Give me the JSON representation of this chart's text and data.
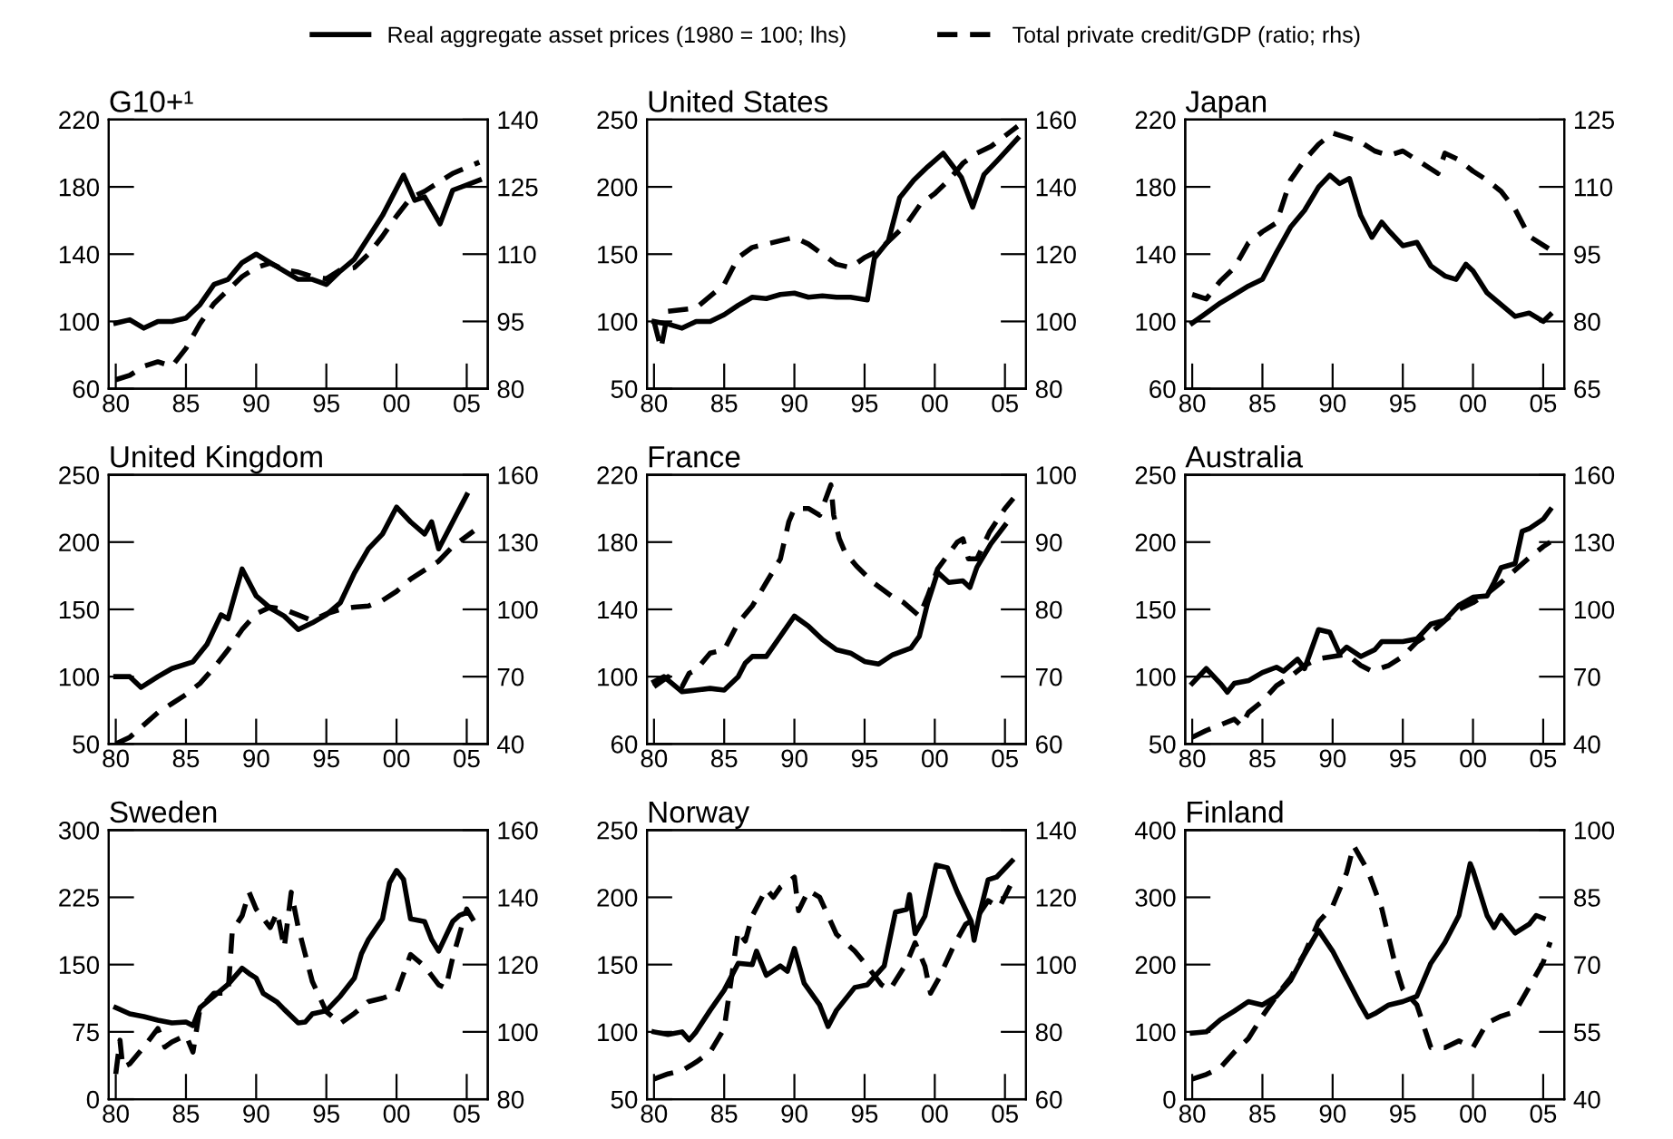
{
  "chart_data": [
    {
      "type": "line",
      "title": "G10+¹",
      "legend": "top",
      "xlim": [
        1979.5,
        2006.5
      ],
      "xticks": [
        {
          "value": 1980,
          "label": "80"
        },
        {
          "value": 1985,
          "label": "85"
        },
        {
          "value": 1990,
          "label": "90"
        },
        {
          "value": 1995,
          "label": "95"
        },
        {
          "value": 2000,
          "label": "00"
        },
        {
          "value": 2005,
          "label": "05"
        }
      ],
      "ylim": [
        60,
        220
      ],
      "yticks": [
        60,
        100,
        140,
        180,
        220
      ],
      "y2lim": [
        80,
        140
      ],
      "y2ticks": [
        80,
        95,
        110,
        125,
        140
      ],
      "series": [
        {
          "name": "Real aggregate asset prices (1980 = 100; lhs)",
          "color": "#000000",
          "line_style": "solid",
          "x": [
            1980,
            1981,
            1982,
            1983,
            1984,
            1985,
            1986,
            1987,
            1988,
            1989,
            1990,
            1991,
            1992,
            1993,
            1994,
            1995,
            1996,
            1997,
            1998,
            1999,
            2000.5,
            2001.3,
            2002,
            2003.1,
            2004,
            2005.9
          ],
          "values": [
            99,
            101,
            96,
            100,
            100,
            102,
            110,
            122,
            125,
            135,
            140,
            135,
            130,
            125,
            125,
            122,
            130,
            137,
            150,
            163,
            187,
            172,
            174,
            158,
            178,
            184
          ]
        },
        {
          "name": "Total private credit/GDP (ratio; rhs)",
          "color": "#000000",
          "line_style": "dashed",
          "axis": "y2",
          "x": [
            1980,
            1981,
            1982,
            1983,
            1984,
            1985,
            1986,
            1987,
            1988,
            1989,
            1990,
            1991,
            1992,
            1993,
            1994,
            1995,
            1996,
            1997,
            1998,
            1999,
            2000,
            2001,
            2002,
            2003,
            2004,
            2005.9
          ],
          "values": [
            82,
            83,
            85,
            86,
            85,
            89,
            94.5,
            99,
            102,
            105,
            107,
            108,
            106.5,
            106,
            105,
            104.5,
            106.5,
            107,
            110,
            114,
            118.5,
            122.5,
            124,
            126,
            128,
            130.5
          ]
        }
      ]
    },
    {
      "type": "line",
      "title": "United States",
      "xlim": [
        1979.5,
        2006.5
      ],
      "xticks": [
        {
          "value": 1980,
          "label": "80"
        },
        {
          "value": 1985,
          "label": "85"
        },
        {
          "value": 1990,
          "label": "90"
        },
        {
          "value": 1995,
          "label": "95"
        },
        {
          "value": 2000,
          "label": "00"
        },
        {
          "value": 2005,
          "label": "05"
        }
      ],
      "ylim": [
        50,
        250
      ],
      "yticks": [
        50,
        100,
        150,
        200,
        250
      ],
      "y2lim": [
        80,
        160
      ],
      "y2ticks": [
        80,
        100,
        120,
        140,
        160
      ],
      "series": [
        {
          "color": "#000000",
          "line_style": "solid",
          "x": [
            1980,
            1981,
            1982,
            1983,
            1984,
            1985,
            1986,
            1987,
            1988,
            1989,
            1990,
            1991,
            1992,
            1993,
            1994,
            1995.2,
            1995.7,
            1996.7,
            1997.5,
            1998.5,
            1999.5,
            2000.6,
            2001.9,
            2002.7,
            2003.5,
            2004.5,
            2005.9
          ],
          "values": [
            100,
            98,
            95,
            100,
            100,
            105,
            112,
            118,
            117,
            120,
            121,
            118,
            119,
            118,
            118,
            116,
            147,
            160,
            192,
            205,
            215,
            225,
            207,
            185,
            209,
            220,
            236
          ]
        },
        {
          "color": "#000000",
          "line_style": "dashed",
          "axis": "y2",
          "x": [
            1980,
            1980.5,
            1981,
            1983,
            1985,
            1986,
            1987,
            1988,
            1989,
            1990,
            1991,
            1992,
            1993,
            1994,
            1995,
            1996,
            1997,
            1998,
            1999,
            2000,
            2001,
            2002,
            2003,
            2004,
            2005.9
          ],
          "values": [
            100,
            92,
            103,
            104,
            111,
            119,
            122,
            123,
            124,
            125,
            123,
            120,
            117,
            116,
            119,
            121,
            125,
            129,
            135,
            138,
            142,
            147,
            150,
            152,
            158
          ]
        }
      ]
    },
    {
      "type": "line",
      "title": "Japan",
      "xlim": [
        1979.5,
        2006.5
      ],
      "xticks": [
        {
          "value": 1980,
          "label": "80"
        },
        {
          "value": 1985,
          "label": "85"
        },
        {
          "value": 1990,
          "label": "90"
        },
        {
          "value": 1995,
          "label": "95"
        },
        {
          "value": 2000,
          "label": "00"
        },
        {
          "value": 2005,
          "label": "05"
        }
      ],
      "ylim": [
        60,
        220
      ],
      "yticks": [
        60,
        100,
        140,
        180,
        220
      ],
      "y2lim": [
        65,
        125
      ],
      "y2ticks": [
        65,
        80,
        95,
        110,
        125
      ],
      "series": [
        {
          "color": "#000000",
          "line_style": "solid",
          "x": [
            1980,
            1981,
            1982,
            1983,
            1984,
            1985,
            1986,
            1987,
            1988,
            1989,
            1989.8,
            1990.5,
            1991.2,
            1992,
            1992.8,
            1993.5,
            1994,
            1995,
            1996,
            1997,
            1998,
            1998.8,
            1999.5,
            2000,
            2001,
            2002,
            2003,
            2004,
            2005,
            2005.5
          ],
          "values": [
            99,
            105,
            111,
            116,
            121,
            125,
            141,
            156,
            166,
            180,
            187,
            182,
            185,
            163,
            150,
            159,
            154,
            145,
            147,
            133,
            127,
            125,
            134,
            130,
            117,
            110,
            103,
            105,
            100,
            104
          ]
        },
        {
          "color": "#000000",
          "line_style": "dashed",
          "axis": "y2",
          "x": [
            1980,
            1981,
            1982,
            1983,
            1984,
            1985,
            1986,
            1987,
            1988,
            1989,
            1990,
            1991,
            1992,
            1993,
            1994,
            1995,
            1996,
            1997,
            1997.5,
            1998,
            1999,
            2000,
            2001,
            2002,
            2003,
            2004,
            2005,
            2005.5
          ],
          "values": [
            86,
            85,
            89,
            92,
            97.5,
            100,
            102,
            111.5,
            116,
            119.5,
            122,
            121,
            120,
            118,
            117,
            118,
            116,
            114,
            113,
            117.5,
            116,
            113.5,
            111.5,
            109,
            105,
            99,
            97,
            96
          ]
        }
      ]
    },
    {
      "type": "line",
      "title": "United Kingdom",
      "xlim": [
        1979.5,
        2006.5
      ],
      "xticks": [
        {
          "value": 1980,
          "label": "80"
        },
        {
          "value": 1985,
          "label": "85"
        },
        {
          "value": 1990,
          "label": "90"
        },
        {
          "value": 1995,
          "label": "95"
        },
        {
          "value": 2000,
          "label": "00"
        },
        {
          "value": 2005,
          "label": "05"
        }
      ],
      "ylim": [
        50,
        250
      ],
      "yticks": [
        50,
        100,
        150,
        200,
        250
      ],
      "y2lim": [
        40,
        160
      ],
      "y2ticks": [
        40,
        70,
        100,
        130,
        160
      ],
      "series": [
        {
          "color": "#000000",
          "line_style": "solid",
          "x": [
            1980,
            1981,
            1981.8,
            1983,
            1984,
            1985.5,
            1986.5,
            1987.5,
            1988,
            1989,
            1990,
            1991,
            1992,
            1993,
            1994,
            1995,
            1996,
            1997,
            1998,
            1999,
            2000,
            2001,
            2002,
            2002.5,
            2003,
            2004,
            2005
          ],
          "values": [
            100,
            100,
            92,
            100,
            106,
            111,
            124,
            146,
            143,
            180,
            160,
            151,
            145,
            135,
            140,
            146,
            155,
            177,
            195,
            206,
            226,
            215,
            206,
            215,
            195,
            215,
            235
          ]
        },
        {
          "color": "#000000",
          "line_style": "dashed",
          "axis": "y2",
          "x": [
            1980,
            1981,
            1982,
            1983,
            1984,
            1985,
            1986,
            1987,
            1988,
            1989,
            1990,
            1991,
            1992,
            1993,
            1994,
            1995,
            1996,
            1997,
            1998,
            1999,
            2000,
            2001,
            2002,
            2003,
            2004,
            2005.5
          ],
          "values": [
            40,
            43,
            48.5,
            54,
            58,
            62,
            67,
            74,
            82,
            91,
            98,
            101,
            100,
            97.5,
            95,
            98,
            100,
            101,
            101.5,
            104,
            108,
            113.5,
            117.5,
            121.5,
            128,
            135
          ]
        }
      ]
    },
    {
      "type": "line",
      "title": "France",
      "xlim": [
        1979.5,
        2006.5
      ],
      "xticks": [
        {
          "value": 1980,
          "label": "80"
        },
        {
          "value": 1985,
          "label": "85"
        },
        {
          "value": 1990,
          "label": "90"
        },
        {
          "value": 1995,
          "label": "95"
        },
        {
          "value": 2000,
          "label": "00"
        },
        {
          "value": 2005,
          "label": "05"
        }
      ],
      "ylim": [
        60,
        220
      ],
      "yticks": [
        60,
        100,
        140,
        180,
        220
      ],
      "y2lim": [
        60,
        100
      ],
      "y2ticks": [
        60,
        70,
        80,
        90,
        100
      ],
      "series": [
        {
          "color": "#000000",
          "line_style": "solid",
          "x": [
            1980,
            1980.7,
            1982,
            1983,
            1984,
            1985,
            1986,
            1986.5,
            1987,
            1988,
            1989,
            1990,
            1991,
            1992,
            1993,
            1994,
            1995,
            1996,
            1997,
            1998.3,
            1998.9,
            1999.5,
            2000.2,
            2001,
            2002,
            2002.5,
            2003,
            2004,
            2005
          ],
          "values": [
            97,
            100,
            91,
            92,
            93,
            92,
            100,
            108,
            112,
            112,
            124,
            136,
            130,
            122,
            116,
            114,
            109,
            107.5,
            113,
            117,
            124,
            144,
            162,
            156,
            157,
            153,
            165,
            179,
            190
          ]
        },
        {
          "color": "#000000",
          "line_style": "dashed",
          "axis": "y2",
          "x": [
            1980,
            1981,
            1982,
            1982.5,
            1983,
            1984,
            1985,
            1986,
            1987,
            1988,
            1989,
            1989.6,
            1990,
            1991,
            1991.8,
            1992.6,
            1992.8,
            1993.2,
            1993.6,
            1994.4,
            1995.6,
            1996.9,
            1997.8,
            1998.9,
            1999.5,
            2000.2,
            2001.6,
            2002,
            2002.4,
            2003,
            2003.9,
            2005,
            2005.6
          ],
          "values": [
            68.5,
            70,
            68.5,
            70.5,
            71,
            73.5,
            74,
            78,
            80.5,
            84,
            87.5,
            93,
            95,
            95,
            94,
            98.5,
            94,
            90.5,
            88.5,
            86.5,
            84,
            82,
            81,
            79,
            82,
            86,
            90,
            90.5,
            87.5,
            87.5,
            91.5,
            95,
            96.5
          ]
        }
      ]
    },
    {
      "type": "line",
      "title": "Australia",
      "xlim": [
        1979.5,
        2006.5
      ],
      "xticks": [
        {
          "value": 1980,
          "label": "80"
        },
        {
          "value": 1985,
          "label": "85"
        },
        {
          "value": 1990,
          "label": "90"
        },
        {
          "value": 1995,
          "label": "95"
        },
        {
          "value": 2000,
          "label": "00"
        },
        {
          "value": 2005,
          "label": "05"
        }
      ],
      "ylim": [
        50,
        250
      ],
      "yticks": [
        50,
        100,
        150,
        200,
        250
      ],
      "y2lim": [
        40,
        160
      ],
      "y2ticks": [
        40,
        70,
        100,
        130,
        160
      ],
      "series": [
        {
          "color": "#000000",
          "line_style": "solid",
          "x": [
            1980,
            1981,
            1982,
            1982.5,
            1983,
            1984,
            1985,
            1986,
            1986.5,
            1987.5,
            1988,
            1989,
            1989.8,
            1990.5,
            1991,
            1992,
            1993,
            1993.5,
            1995,
            1996,
            1997,
            1998,
            1999,
            2000,
            2001,
            2001.5,
            2002,
            2003,
            2003.5,
            2004,
            2005,
            2005.5
          ],
          "values": [
            95,
            106,
            95,
            88.5,
            95,
            97,
            103,
            107,
            104,
            113,
            106,
            135,
            133,
            117,
            122,
            115,
            120,
            126,
            126,
            128,
            139,
            142,
            153,
            159,
            160,
            170,
            181,
            184,
            208,
            210,
            217,
            224
          ]
        },
        {
          "color": "#000000",
          "line_style": "dashed",
          "axis": "y2",
          "x": [
            1980,
            1981,
            1982,
            1983,
            1983.5,
            1984,
            1985,
            1986,
            1987,
            1988,
            1989,
            1990,
            1991,
            1992,
            1992.8,
            1994,
            1995,
            1996,
            1997,
            1998,
            1999,
            2000,
            2001,
            2002,
            2003,
            2004,
            2005,
            2005.5
          ],
          "values": [
            43,
            46,
            48.5,
            51,
            48,
            54,
            59,
            66,
            70,
            75,
            78,
            79,
            80,
            75,
            72.5,
            75,
            79,
            85.5,
            89.5,
            95,
            100,
            103,
            107,
            112,
            117.5,
            123,
            128,
            130
          ]
        }
      ]
    },
    {
      "type": "line",
      "title": "Sweden",
      "xlim": [
        1979.5,
        2006.5
      ],
      "xticks": [
        {
          "value": 1980,
          "label": "80"
        },
        {
          "value": 1985,
          "label": "85"
        },
        {
          "value": 1990,
          "label": "90"
        },
        {
          "value": 1995,
          "label": "95"
        },
        {
          "value": 2000,
          "label": "00"
        },
        {
          "value": 2005,
          "label": "05"
        }
      ],
      "ylim": [
        0,
        300
      ],
      "yticks": [
        0,
        75,
        150,
        225,
        300
      ],
      "y2lim": [
        80,
        160
      ],
      "y2ticks": [
        80,
        100,
        120,
        140,
        160
      ],
      "series": [
        {
          "color": "#000000",
          "line_style": "solid",
          "x": [
            1980,
            1981,
            1982,
            1983,
            1984,
            1985,
            1985.5,
            1986,
            1987,
            1988,
            1989,
            1989.5,
            1990,
            1990.5,
            1991.5,
            1992,
            1993,
            1993.5,
            1994,
            1995,
            1996,
            1997,
            1997.5,
            1998,
            1999,
            1999.5,
            2000,
            2000.5,
            2001,
            2002,
            2002.5,
            2003,
            2004,
            2004.5,
            2005
          ],
          "values": [
            102,
            95,
            92,
            88,
            85,
            86,
            82,
            102,
            115,
            128,
            146,
            140,
            135,
            118,
            108,
            100,
            85,
            86,
            95,
            98.5,
            115,
            135,
            162,
            178,
            201,
            241,
            255,
            245,
            201,
            198,
            178,
            165,
            198,
            205,
            208
          ]
        },
        {
          "color": "#000000",
          "line_style": "dashed",
          "axis": "y2",
          "x": [
            1980,
            1980.3,
            1980.5,
            1981,
            1982,
            1983,
            1983.5,
            1984,
            1985,
            1985.5,
            1986,
            1987,
            1988,
            1988.3,
            1989,
            1989.5,
            1990,
            1991,
            1991.5,
            1992,
            1992.5,
            1993,
            1994,
            1995,
            1996,
            1997,
            1998,
            1999,
            2000,
            2001,
            2002,
            2003,
            2003.5,
            2004,
            2005,
            2005.5
          ],
          "values": [
            87.5,
            97.5,
            89.5,
            90.5,
            95.5,
            101,
            95.5,
            97,
            99,
            94,
            107,
            111.5,
            111.5,
            130,
            134.5,
            141.5,
            136.5,
            131,
            135.5,
            125,
            141.5,
            131,
            115,
            106,
            102.5,
            105.5,
            109,
            110,
            111.5,
            123,
            119.5,
            114,
            113,
            122,
            136.5,
            133
          ]
        }
      ]
    },
    {
      "type": "line",
      "title": "Norway",
      "xlim": [
        1979.5,
        2006.5
      ],
      "xticks": [
        {
          "value": 1980,
          "label": "80"
        },
        {
          "value": 1985,
          "label": "85"
        },
        {
          "value": 1990,
          "label": "90"
        },
        {
          "value": 1995,
          "label": "95"
        },
        {
          "value": 2000,
          "label": "00"
        },
        {
          "value": 2005,
          "label": "05"
        }
      ],
      "ylim": [
        50,
        250
      ],
      "yticks": [
        50,
        100,
        150,
        200,
        250
      ],
      "y2lim": [
        60,
        140
      ],
      "y2ticks": [
        60,
        80,
        100,
        120,
        140
      ],
      "series": [
        {
          "color": "#000000",
          "line_style": "solid",
          "x": [
            1980,
            1981,
            1982,
            1982.5,
            1983,
            1984,
            1985,
            1986,
            1987,
            1987.3,
            1988,
            1989,
            1989.5,
            1990,
            1990.7,
            1991.8,
            1992.4,
            1993,
            1994.3,
            1995.2,
            1996.4,
            1997.2,
            1998,
            1998.2,
            1998.6,
            1999.3,
            2000.1,
            2000.9,
            2001.6,
            2002.6,
            2002.8,
            2003.2,
            2003.8,
            2004.4,
            2005.5
          ],
          "values": [
            100,
            98,
            100,
            94,
            100,
            116,
            131,
            151,
            150,
            160,
            142,
            149,
            145,
            162,
            136,
            120,
            104,
            116,
            133,
            135,
            149,
            189,
            191,
            202,
            173,
            186,
            224,
            222,
            204,
            182,
            168,
            188,
            213,
            215,
            227
          ]
        },
        {
          "color": "#000000",
          "line_style": "dashed",
          "axis": "y2",
          "x": [
            1980,
            1981,
            1982,
            1983,
            1984,
            1985,
            1986,
            1986.5,
            1987,
            1988,
            1988.5,
            1989,
            1990,
            1990.3,
            1991,
            1991.8,
            1993,
            1994.3,
            1995.2,
            1996.2,
            1996.8,
            1998,
            1998.6,
            1999.3,
            1999.7,
            2000.3,
            2001.4,
            2002.2,
            2003,
            2003.8,
            2004.6,
            2005.5
          ],
          "values": [
            66,
            67.5,
            68.5,
            71,
            74,
            81,
            110,
            107,
            114.5,
            122.5,
            120,
            123,
            126,
            116,
            122,
            120,
            109,
            104,
            99.5,
            94,
            92.5,
            100.5,
            106.5,
            99.5,
            91.5,
            96,
            106,
            112,
            114,
            119,
            117,
            124.5
          ]
        }
      ]
    },
    {
      "type": "line",
      "title": "Finland",
      "xlim": [
        1979.5,
        2006.5
      ],
      "xticks": [
        {
          "value": 1980,
          "label": "80"
        },
        {
          "value": 1985,
          "label": "85"
        },
        {
          "value": 1990,
          "label": "90"
        },
        {
          "value": 1995,
          "label": "95"
        },
        {
          "value": 2000,
          "label": "00"
        },
        {
          "value": 2005,
          "label": "05"
        }
      ],
      "ylim": [
        0,
        400
      ],
      "yticks": [
        0,
        100,
        200,
        300,
        400
      ],
      "y2lim": [
        40,
        100
      ],
      "y2ticks": [
        40,
        55,
        70,
        85,
        100
      ],
      "series": [
        {
          "color": "#000000",
          "line_style": "solid",
          "x": [
            1980,
            1981,
            1982,
            1983,
            1984,
            1985,
            1986,
            1987,
            1988,
            1989,
            1990,
            1991,
            1992,
            1992.5,
            1993,
            1994,
            1995,
            1996,
            1997,
            1998,
            1999,
            1999.8,
            2000,
            2001,
            2001.5,
            2002,
            2003,
            2004,
            2004.5,
            2005
          ],
          "values": [
            98,
            100,
            118,
            131,
            145,
            140,
            153,
            176,
            215,
            251,
            220,
            180,
            140,
            122,
            127,
            140,
            145,
            153,
            202,
            233,
            273,
            350,
            340,
            273,
            255,
            273,
            247,
            260,
            273,
            269
          ]
        },
        {
          "color": "#000000",
          "line_style": "dashed",
          "axis": "y2",
          "x": [
            1980,
            1981,
            1982,
            1983,
            1984,
            1985,
            1986,
            1987,
            1988,
            1989,
            1990,
            1991,
            1991.5,
            1992.5,
            1993.5,
            1994.5,
            1995,
            1996,
            1997,
            1998,
            1999,
            2000,
            2001,
            2002,
            2003,
            2004,
            2005,
            2005.5
          ],
          "values": [
            44.5,
            45.5,
            47,
            50.5,
            53.5,
            58.5,
            63,
            67,
            72.5,
            79.5,
            83,
            90.5,
            96.5,
            91,
            82.5,
            69.5,
            64.5,
            61,
            51.5,
            51.5,
            53,
            51.5,
            57,
            58.5,
            59.5,
            65,
            70.5,
            75
          ]
        }
      ]
    }
  ]
}
